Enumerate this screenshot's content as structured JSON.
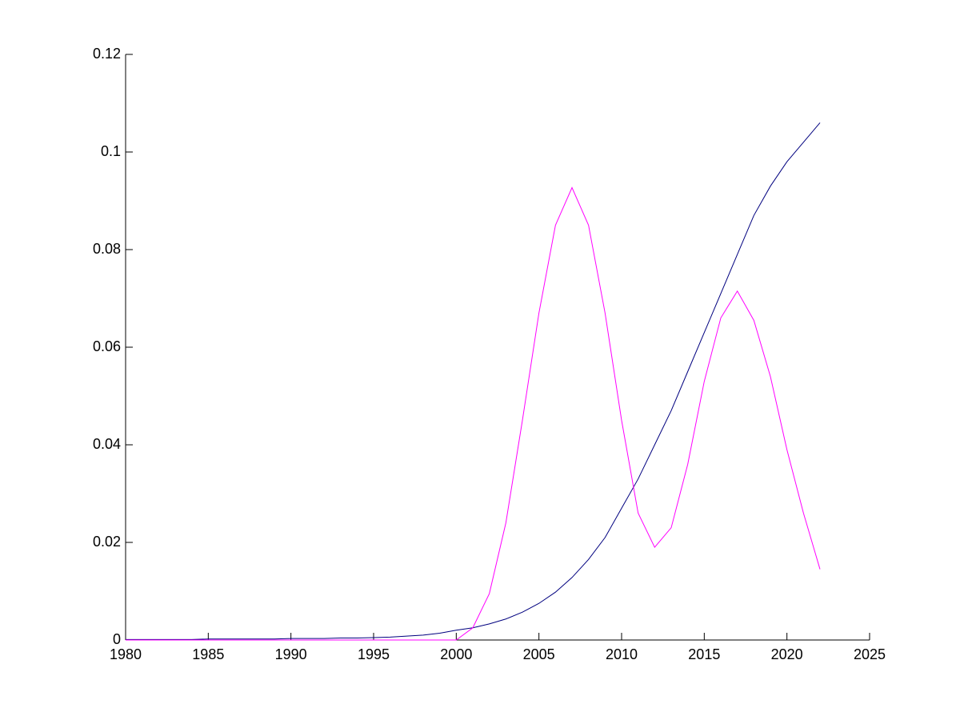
{
  "chart_data": {
    "type": "line",
    "x": [
      1980,
      1981,
      1982,
      1983,
      1984,
      1985,
      1986,
      1987,
      1988,
      1989,
      1990,
      1991,
      1992,
      1993,
      1994,
      1995,
      1996,
      1997,
      1998,
      1999,
      2000,
      2001,
      2002,
      2003,
      2004,
      2005,
      2006,
      2007,
      2008,
      2009,
      2010,
      2011,
      2012,
      2013,
      2014,
      2015,
      2016,
      2017,
      2018,
      2019,
      2020,
      2021,
      2022
    ],
    "series": [
      {
        "color": "#00007f",
        "values": [
          0.0001,
          0.0001,
          0.0001,
          0.0001,
          0.0001,
          0.0002,
          0.0002,
          0.0002,
          0.0002,
          0.0002,
          0.0003,
          0.0003,
          0.0003,
          0.0004,
          0.0004,
          0.0005,
          0.0006,
          0.0008,
          0.001,
          0.0014,
          0.002,
          0.0025,
          0.0033,
          0.0043,
          0.0057,
          0.0075,
          0.0098,
          0.0128,
          0.0165,
          0.021,
          0.027,
          0.033,
          0.04,
          0.047,
          0.055,
          0.063,
          0.071,
          0.079,
          0.087,
          0.093,
          0.098,
          0.102,
          0.106
        ]
      },
      {
        "color": "#ff00ff",
        "values": [
          0,
          0,
          0,
          0,
          0,
          0,
          0,
          0,
          0,
          0,
          0,
          0,
          0,
          0,
          0,
          0,
          0,
          0,
          0,
          0,
          0,
          0.0025,
          0.0095,
          0.024,
          0.045,
          0.067,
          0.085,
          0.0927,
          0.085,
          0.067,
          0.045,
          0.026,
          0.019,
          0.023,
          0.036,
          0.053,
          0.066,
          0.0715,
          0.0655,
          0.054,
          0.039,
          0.026,
          0.0145
        ]
      }
    ],
    "xlim": [
      1980,
      2025
    ],
    "xticks": [
      1980,
      1985,
      1990,
      1995,
      2000,
      2005,
      2010,
      2015,
      2020,
      2025
    ],
    "ylim": [
      0,
      0.12
    ],
    "yticks": [
      0,
      0.02,
      0.04,
      0.06,
      0.08,
      0.1,
      0.12
    ]
  }
}
